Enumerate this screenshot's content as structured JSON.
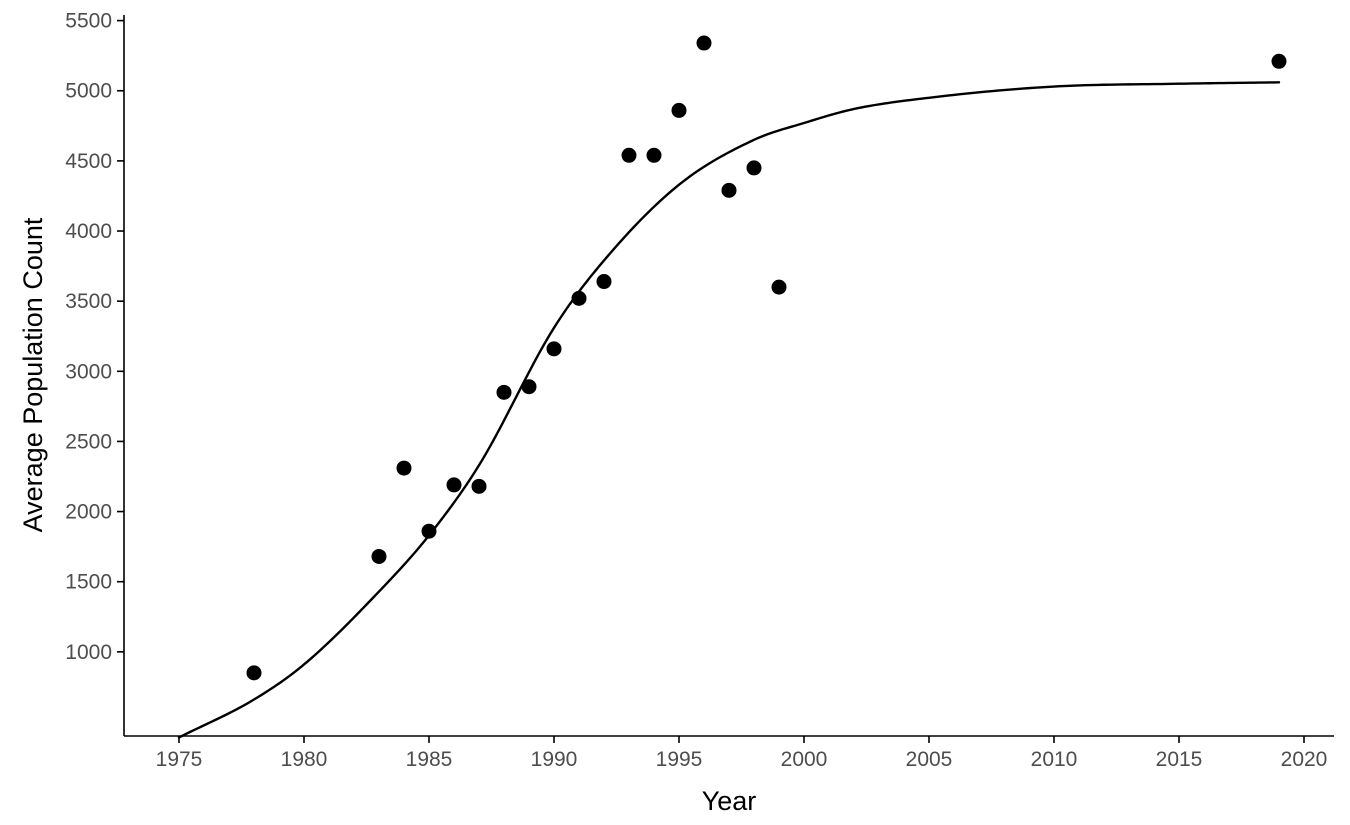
{
  "chart_data": {
    "type": "scatter",
    "title": "",
    "xlabel": "Year",
    "ylabel": "Average Population Count",
    "xlim": [
      1972.8,
      2021.2
    ],
    "ylim": [
      400,
      5540
    ],
    "xticks": [
      1975,
      1980,
      1985,
      1990,
      1995,
      2000,
      2005,
      2010,
      2015,
      2020
    ],
    "yticks": [
      1000,
      1500,
      2000,
      2500,
      3000,
      3500,
      4000,
      4500,
      5000,
      5500
    ],
    "grid": false,
    "legend": "none",
    "points": {
      "x": [
        1978,
        1983,
        1984,
        1985,
        1986,
        1987,
        1988,
        1989,
        1990,
        1991,
        1992,
        1993,
        1994,
        1995,
        1996,
        1997,
        1998,
        1999,
        2019
      ],
      "y": [
        850,
        1680,
        2310,
        1860,
        2190,
        2180,
        2850,
        2890,
        3160,
        3520,
        3640,
        4540,
        4540,
        4860,
        5340,
        4290,
        4450,
        3600,
        5210
      ]
    },
    "fit_curve": {
      "x": [
        1975,
        1978,
        1980,
        1983,
        1985,
        1987,
        1990,
        1992,
        1995,
        1998,
        2000,
        2002,
        2005,
        2010,
        2015,
        2019
      ],
      "y": [
        390,
        660,
        910,
        1430,
        1830,
        2330,
        3310,
        3790,
        4330,
        4650,
        4770,
        4870,
        4950,
        5030,
        5050,
        5060
      ]
    },
    "colors": {
      "points": "#000000",
      "line": "#000000",
      "axis": "#000000",
      "tick_text": "#4d4d4d"
    }
  }
}
